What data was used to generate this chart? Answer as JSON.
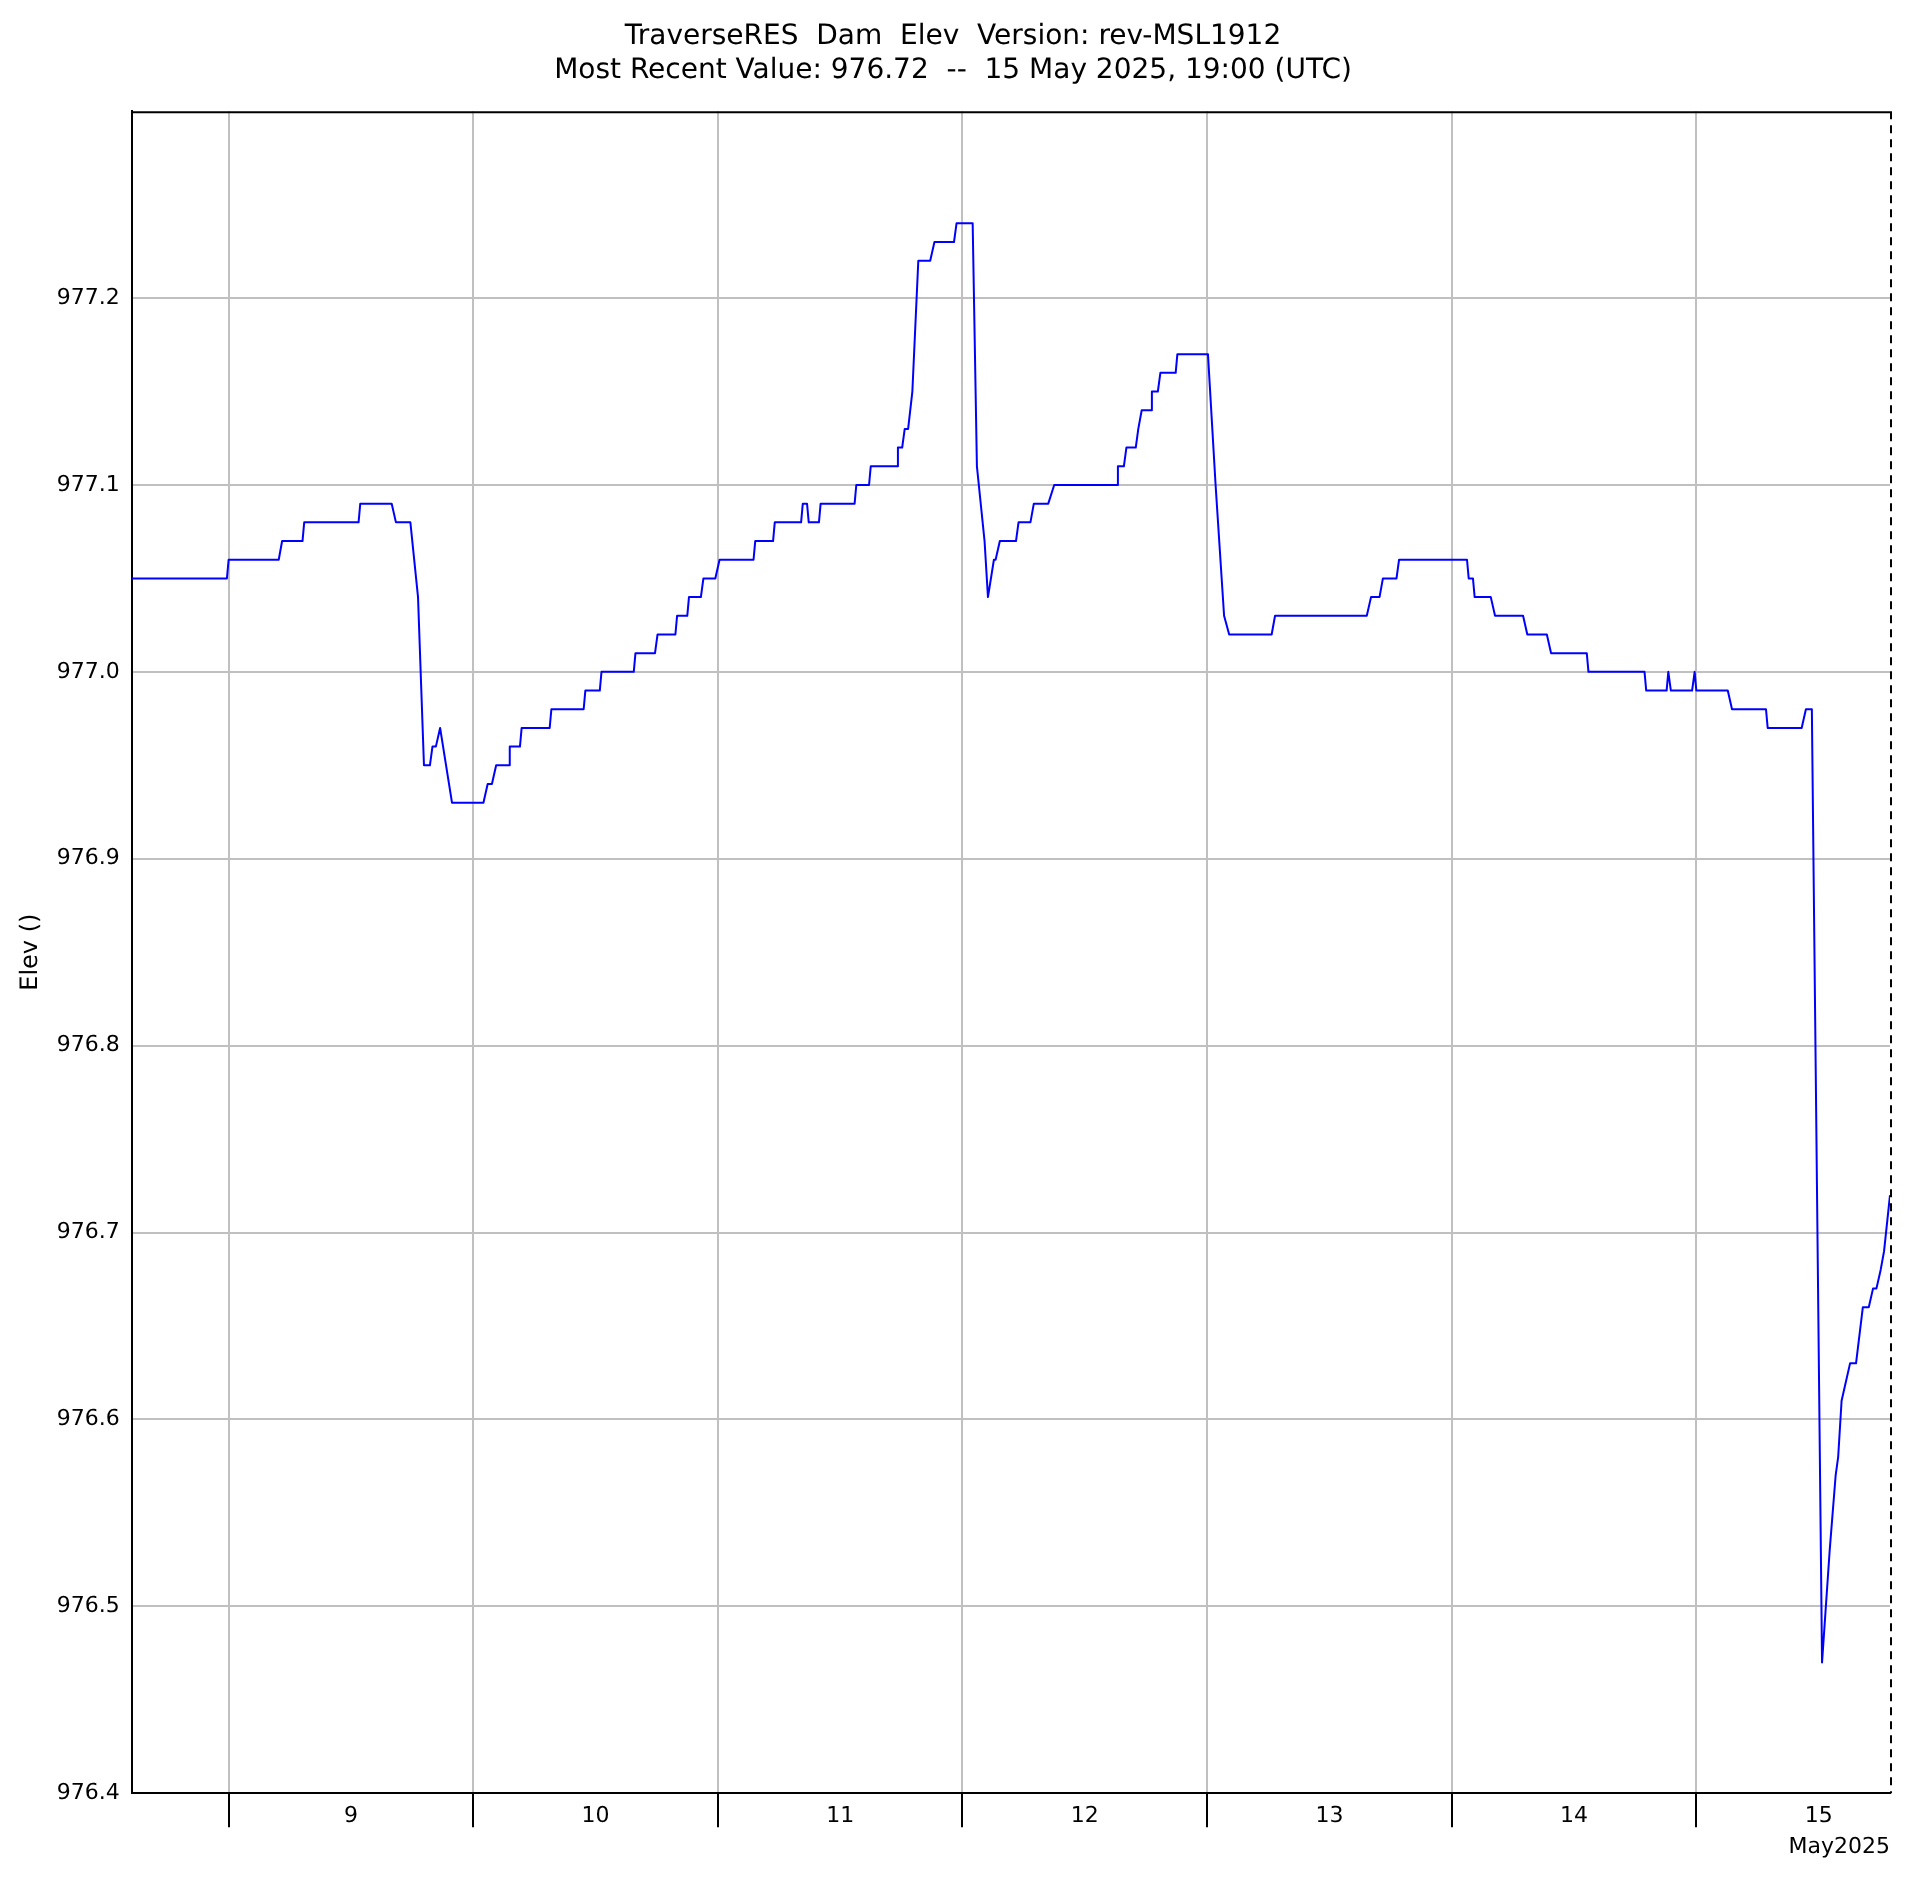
{
  "chart_data": {
    "type": "line",
    "title": "TraverseRES  Dam  Elev  Version: rev-MSL1912",
    "subtitle": "Most Recent Value: 976.72  --  15 May 2025, 19:00 (UTC)",
    "ylabel": "Elev ()",
    "xlabel": "May2025",
    "x": [
      "2025-05-08T14:30",
      "2025-05-08T23:50",
      "2025-05-09T00:00",
      "2025-05-09T04:55",
      "2025-05-09T05:15",
      "2025-05-09T07:15",
      "2025-05-09T07:25",
      "2025-05-09T12:45",
      "2025-05-09T12:55",
      "2025-05-09T16:00",
      "2025-05-09T16:25",
      "2025-05-09T17:50",
      "2025-05-09T18:35",
      "2025-05-09T19:10",
      "2025-05-09T19:45",
      "2025-05-09T20:00",
      "2025-05-09T20:20",
      "2025-05-09T20:45",
      "2025-05-09T20:55",
      "2025-05-09T21:55",
      "2025-05-10T01:00",
      "2025-05-10T01:25",
      "2025-05-10T01:50",
      "2025-05-10T02:15",
      "2025-05-10T03:25",
      "2025-05-10T03:35",
      "2025-05-10T04:35",
      "2025-05-10T04:45",
      "2025-05-10T07:30",
      "2025-05-10T07:40",
      "2025-05-10T10:50",
      "2025-05-10T11:00",
      "2025-05-10T12:25",
      "2025-05-10T12:35",
      "2025-05-10T15:45",
      "2025-05-10T15:55",
      "2025-05-10T17:50",
      "2025-05-10T18:05",
      "2025-05-10T19:50",
      "2025-05-10T20:00",
      "2025-05-10T21:00",
      "2025-05-10T21:10",
      "2025-05-10T22:20",
      "2025-05-10T22:35",
      "2025-05-10T23:45",
      "2025-05-11T00:10",
      "2025-05-11T03:30",
      "2025-05-11T03:40",
      "2025-05-11T05:25",
      "2025-05-11T05:35",
      "2025-05-11T08:10",
      "2025-05-11T08:20",
      "2025-05-11T08:45",
      "2025-05-11T08:55",
      "2025-05-11T09:55",
      "2025-05-11T10:05",
      "2025-05-11T13:25",
      "2025-05-11T13:35",
      "2025-05-11T14:50",
      "2025-05-11T15:00",
      "2025-05-11T17:30",
      "2025-05-11T17:40",
      "2025-05-11T18:05",
      "2025-05-11T18:20",
      "2025-05-11T18:40",
      "2025-05-11T19:05",
      "2025-05-11T19:40",
      "2025-05-11T20:50",
      "2025-05-11T21:15",
      "2025-05-11T23:10",
      "2025-05-11T23:25",
      "2025-05-12T01:00",
      "2025-05-12T01:25",
      "2025-05-12T02:10",
      "2025-05-12T02:30",
      "2025-05-12T03:05",
      "2025-05-12T03:15",
      "2025-05-12T03:40",
      "2025-05-12T05:15",
      "2025-05-12T05:30",
      "2025-05-12T06:40",
      "2025-05-12T07:00",
      "2025-05-12T08:25",
      "2025-05-12T09:00",
      "2025-05-12T15:05",
      "2025-05-12T15:15",
      "2025-05-12T15:50",
      "2025-05-12T16:05",
      "2025-05-12T17:00",
      "2025-05-12T17:15",
      "2025-05-12T17:25",
      "2025-05-12T17:35",
      "2025-05-12T18:25",
      "2025-05-12T18:35",
      "2025-05-12T19:10",
      "2025-05-12T19:25",
      "2025-05-12T20:55",
      "2025-05-12T21:05",
      "2025-05-13T00:05",
      "2025-05-13T00:50",
      "2025-05-13T01:40",
      "2025-05-13T01:50",
      "2025-05-13T02:10",
      "2025-05-13T06:20",
      "2025-05-13T06:40",
      "2025-05-13T15:40",
      "2025-05-13T16:05",
      "2025-05-13T16:55",
      "2025-05-13T17:15",
      "2025-05-13T18:35",
      "2025-05-13T18:50",
      "2025-05-14T01:30",
      "2025-05-14T01:40",
      "2025-05-14T02:05",
      "2025-05-14T02:15",
      "2025-05-14T03:50",
      "2025-05-14T04:15",
      "2025-05-14T07:00",
      "2025-05-14T07:25",
      "2025-05-14T09:20",
      "2025-05-14T09:45",
      "2025-05-14T13:15",
      "2025-05-14T13:25",
      "2025-05-14T18:55",
      "2025-05-14T19:05",
      "2025-05-14T21:05",
      "2025-05-14T21:15",
      "2025-05-14T21:30",
      "2025-05-14T23:35",
      "2025-05-14T23:50",
      "2025-05-15T00:00",
      "2025-05-15T03:05",
      "2025-05-15T03:30",
      "2025-05-15T06:50",
      "2025-05-15T07:00",
      "2025-05-15T10:20",
      "2025-05-15T10:45",
      "2025-05-15T11:20",
      "2025-05-15T12:20",
      "2025-05-15T13:05",
      "2025-05-15T13:40",
      "2025-05-15T13:55",
      "2025-05-15T14:15",
      "2025-05-15T14:40",
      "2025-05-15T15:05",
      "2025-05-15T15:40",
      "2025-05-15T16:20",
      "2025-05-15T16:55",
      "2025-05-15T17:20",
      "2025-05-15T17:40",
      "2025-05-15T18:05",
      "2025-05-15T18:25",
      "2025-05-15T19:00"
    ],
    "series": [
      {
        "color": "#0000ff",
        "values": [
          977.05,
          977.05,
          977.06,
          977.06,
          977.07,
          977.07,
          977.08,
          977.08,
          977.09,
          977.09,
          977.08,
          977.08,
          977.04,
          976.95,
          976.95,
          976.96,
          976.96,
          976.97,
          976.97,
          976.93,
          976.93,
          976.94,
          976.94,
          976.95,
          976.95,
          976.96,
          976.96,
          976.97,
          976.97,
          976.98,
          976.98,
          976.99,
          976.99,
          977.0,
          977.0,
          977.01,
          977.01,
          977.02,
          977.02,
          977.03,
          977.03,
          977.04,
          977.04,
          977.05,
          977.05,
          977.06,
          977.06,
          977.07,
          977.07,
          977.08,
          977.08,
          977.09,
          977.09,
          977.08,
          977.08,
          977.09,
          977.09,
          977.1,
          977.1,
          977.11,
          977.11,
          977.12,
          977.12,
          977.13,
          977.13,
          977.15,
          977.22,
          977.22,
          977.23,
          977.23,
          977.24,
          977.24,
          977.11,
          977.07,
          977.04,
          977.06,
          977.06,
          977.07,
          977.07,
          977.08,
          977.08,
          977.09,
          977.09,
          977.1,
          977.1,
          977.11,
          977.11,
          977.12,
          977.12,
          977.13,
          977.13,
          977.14,
          977.14,
          977.15,
          977.15,
          977.16,
          977.16,
          977.17,
          977.17,
          977.1,
          977.03,
          977.03,
          977.02,
          977.02,
          977.03,
          977.03,
          977.04,
          977.04,
          977.05,
          977.05,
          977.06,
          977.06,
          977.05,
          977.05,
          977.04,
          977.04,
          977.03,
          977.03,
          977.02,
          977.02,
          977.01,
          977.01,
          977.0,
          977.0,
          976.99,
          976.99,
          977.0,
          976.99,
          976.99,
          977.0,
          976.99,
          976.99,
          976.98,
          976.98,
          976.97,
          976.97,
          976.98,
          976.98,
          976.47,
          976.53,
          976.57,
          976.58,
          976.61,
          976.62,
          976.63,
          976.63,
          976.66,
          976.66,
          976.67,
          976.67,
          976.68,
          976.69,
          976.72
        ]
      }
    ],
    "xlim": [
      "2025-05-08T14:30",
      "2025-05-15T19:00"
    ],
    "xticks": [
      {
        "value": "2025-05-09T00:00",
        "label": null
      },
      {
        "value": "2025-05-09T12:00",
        "label": "9"
      },
      {
        "value": "2025-05-10T00:00",
        "label": null
      },
      {
        "value": "2025-05-10T12:00",
        "label": "10"
      },
      {
        "value": "2025-05-11T00:00",
        "label": null
      },
      {
        "value": "2025-05-11T12:00",
        "label": "11"
      },
      {
        "value": "2025-05-12T00:00",
        "label": null
      },
      {
        "value": "2025-05-12T12:00",
        "label": "12"
      },
      {
        "value": "2025-05-13T00:00",
        "label": null
      },
      {
        "value": "2025-05-13T12:00",
        "label": "13"
      },
      {
        "value": "2025-05-14T00:00",
        "label": null
      },
      {
        "value": "2025-05-14T12:00",
        "label": "14"
      },
      {
        "value": "2025-05-15T00:00",
        "label": null
      },
      {
        "value": "2025-05-15T12:00",
        "label": "15"
      }
    ],
    "ylim": [
      976.4,
      977.3
    ],
    "yticks": [
      976.4,
      976.5,
      976.6,
      976.7,
      976.8,
      976.9,
      {
        "value": 977,
        "label": "977.0"
      },
      977.1,
      977.2
    ],
    "ref_lines": [
      {
        "axis": "x",
        "value": "2025-05-15T19:00",
        "color": "#000000",
        "line_style": "dashed"
      }
    ],
    "grid": true,
    "legend": false,
    "marker": "none",
    "line_style": "solid"
  }
}
